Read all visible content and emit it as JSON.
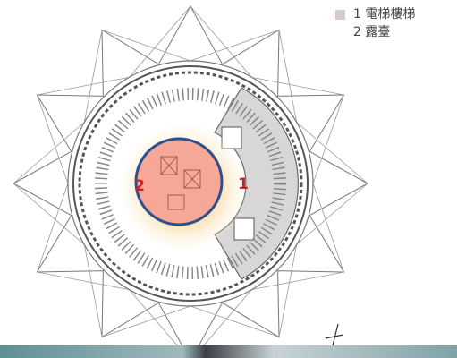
{
  "legend": {
    "items": [
      {
        "label": "1 電梯樓梯"
      },
      {
        "label": "2 露臺"
      }
    ]
  },
  "plan": {
    "labels": [
      "2",
      "1"
    ]
  }
}
